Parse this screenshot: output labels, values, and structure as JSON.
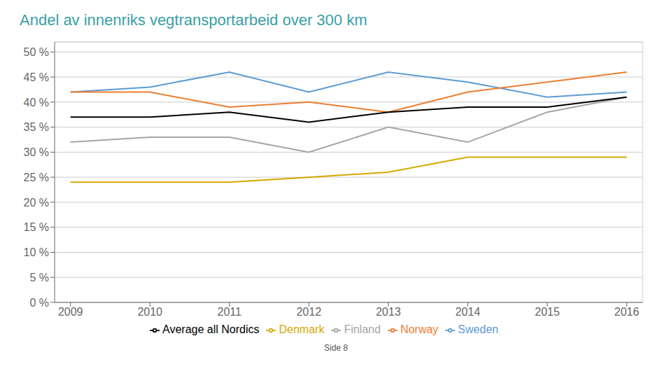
{
  "chart_data": {
    "type": "line",
    "title": "Andel av innenriks vegtransportarbeid over 300 km",
    "x": [
      2009,
      2010,
      2011,
      2012,
      2013,
      2014,
      2015,
      2016
    ],
    "series": [
      {
        "name": "Sweden",
        "color": "#5b9bd5",
        "values": [
          42,
          43,
          46,
          42,
          46,
          44,
          41,
          42
        ]
      },
      {
        "name": "Norway",
        "color": "#ed7d31",
        "values": [
          42,
          42,
          39,
          40,
          38,
          42,
          44,
          46
        ]
      },
      {
        "name": "Finland",
        "color": "#a5a5a5",
        "values": [
          32,
          33,
          33,
          30,
          35,
          32,
          38,
          41
        ]
      },
      {
        "name": "Denmark",
        "color": "#d4a800",
        "values": [
          24,
          24,
          24,
          25,
          26,
          29,
          29,
          29
        ]
      },
      {
        "name": "Average all Nordics",
        "color": "#000000",
        "values": [
          37,
          37,
          38,
          36,
          38,
          39,
          39,
          41
        ]
      }
    ],
    "xlim": [
      2008.8,
      2016.2
    ],
    "xticks": [
      2009,
      2010,
      2011,
      2012,
      2013,
      2014,
      2015,
      2016
    ],
    "ylim": [
      0,
      52
    ],
    "yticks": [
      {
        "value": 0,
        "label": "0 %"
      },
      {
        "value": 5,
        "label": "5 %"
      },
      {
        "value": 10,
        "label": "10 %"
      },
      {
        "value": 15,
        "label": "15 %"
      },
      {
        "value": 20,
        "label": "20 %"
      },
      {
        "value": 25,
        "label": "25 %"
      },
      {
        "value": 30,
        "label": "30 %"
      },
      {
        "value": 35,
        "label": "35 %"
      },
      {
        "value": 40,
        "label": "40 %"
      },
      {
        "value": 45,
        "label": "45 %"
      },
      {
        "value": 50,
        "label": "50 %"
      }
    ],
    "grid": true,
    "legend": "bottom",
    "annotations": [
      "Side 8"
    ]
  }
}
